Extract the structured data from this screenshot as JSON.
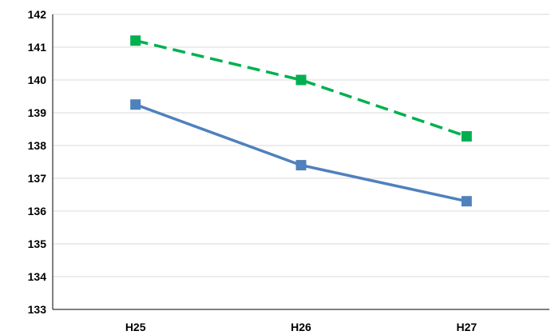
{
  "chart_data": {
    "type": "line",
    "categories": [
      "H25",
      "H26",
      "H27"
    ],
    "ylim": [
      133,
      142
    ],
    "yticks": [
      "133",
      "134",
      "135",
      "136",
      "137",
      "138",
      "139",
      "140",
      "141",
      "142"
    ],
    "grid": true,
    "legend": "none",
    "series": [
      {
        "values": [
          139.25,
          137.4,
          136.3
        ],
        "color": "#4f81bd",
        "line_style": "solid",
        "marker": "square"
      },
      {
        "values": [
          141.2,
          140.0,
          138.28
        ],
        "color": "#00b050",
        "line_style": "dashed",
        "marker": "square"
      }
    ]
  }
}
